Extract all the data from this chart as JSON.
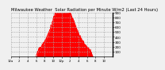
{
  "title": "Milwaukee Weather  Solar Radiation per Minute W/m2 (Last 24 Hours)",
  "title_fontsize": 3.8,
  "background_color": "#f0f0f0",
  "plot_bg_color": "#f0f0f0",
  "grid_color": "#aaaaaa",
  "fill_color": "#ff0000",
  "line_color": "#ff0000",
  "ylim": [
    0,
    900
  ],
  "yticks": [
    100,
    200,
    300,
    400,
    500,
    600,
    700,
    800,
    900
  ],
  "ytick_fontsize": 3.0,
  "xtick_fontsize": 2.8,
  "start_hour": 0,
  "end_hour": 24,
  "xtick_hours": [
    0,
    2,
    4,
    6,
    8,
    10,
    12,
    14,
    16,
    18,
    20,
    22
  ],
  "xtick_labels": [
    "12a",
    "2",
    "4",
    "6",
    "8",
    "10",
    "12p",
    "2",
    "4",
    "6",
    "8",
    "10"
  ],
  "border_color": "#000000"
}
